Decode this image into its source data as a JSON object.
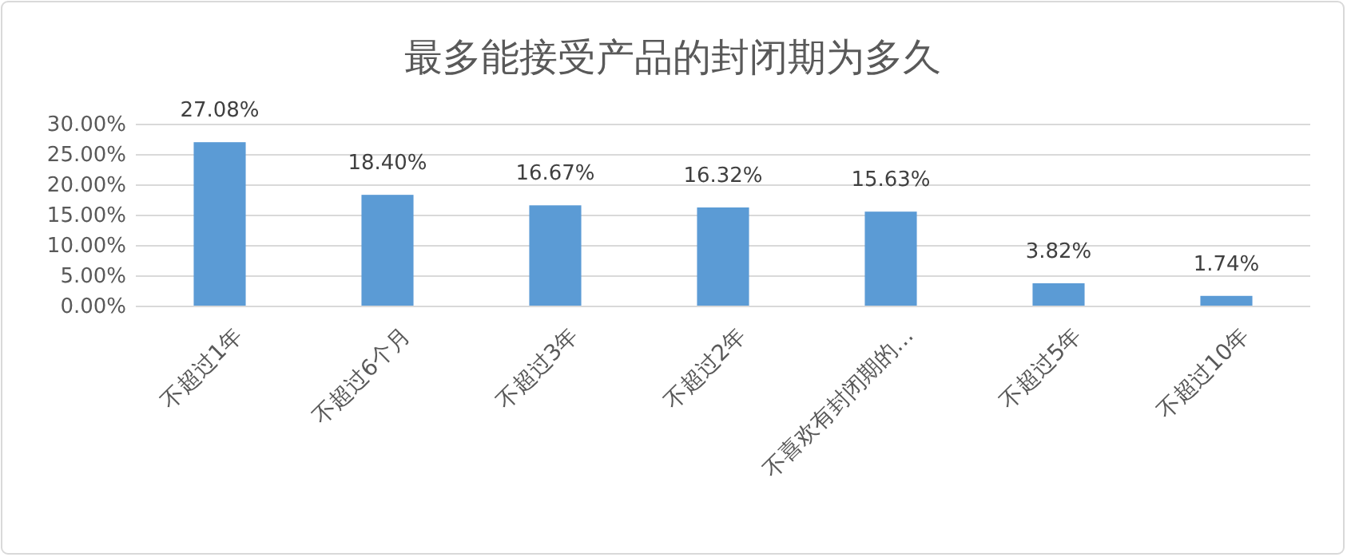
{
  "chart_data": {
    "type": "bar",
    "title": "最多能接受产品的封闭期为多久",
    "categories": [
      "不超过1年",
      "不超过6个月",
      "不超过3年",
      "不超过2年",
      "不喜欢有封闭期的…",
      "不超过5年",
      "不超过10年"
    ],
    "values": [
      27.08,
      18.4,
      16.67,
      16.32,
      15.63,
      3.82,
      1.74
    ],
    "value_labels": [
      "27.08%",
      "18.40%",
      "16.67%",
      "16.32%",
      "15.63%",
      "3.82%",
      "1.74%"
    ],
    "color": "#5b9bd5",
    "ylim": [
      0,
      30
    ],
    "yticks": [
      {
        "value": 0,
        "label": "0.00%"
      },
      {
        "value": 5,
        "label": "5.00%"
      },
      {
        "value": 10,
        "label": "10.00%"
      },
      {
        "value": 15,
        "label": "15.00%"
      },
      {
        "value": 20,
        "label": "20.00%"
      },
      {
        "value": 25,
        "label": "25.00%"
      },
      {
        "value": 30,
        "label": "30.00%"
      }
    ],
    "grid": "y"
  }
}
